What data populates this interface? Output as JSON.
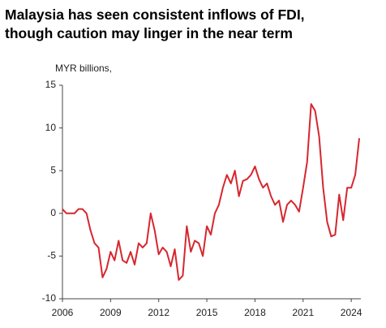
{
  "chart_data": {
    "type": "line",
    "title": [
      "Malaysia has seen consistent inflows of FDI,",
      "though caution may linger in the near term"
    ],
    "y_label": "MYR billions,",
    "x": [
      2006.0,
      2006.25,
      2006.5,
      2006.75,
      2007.0,
      2007.25,
      2007.5,
      2007.75,
      2008.0,
      2008.25,
      2008.5,
      2008.75,
      2009.0,
      2009.25,
      2009.5,
      2009.75,
      2010.0,
      2010.25,
      2010.5,
      2010.75,
      2011.0,
      2011.25,
      2011.5,
      2011.75,
      2012.0,
      2012.25,
      2012.5,
      2012.75,
      2013.0,
      2013.25,
      2013.5,
      2013.75,
      2014.0,
      2014.25,
      2014.5,
      2014.75,
      2015.0,
      2015.25,
      2015.5,
      2015.75,
      2016.0,
      2016.25,
      2016.5,
      2016.75,
      2017.0,
      2017.25,
      2017.5,
      2017.75,
      2018.0,
      2018.25,
      2018.5,
      2018.75,
      2019.0,
      2019.25,
      2019.5,
      2019.75,
      2020.0,
      2020.25,
      2020.5,
      2020.75,
      2021.0,
      2021.25,
      2021.5,
      2021.75,
      2022.0,
      2022.25,
      2022.5,
      2022.75,
      2023.0,
      2023.25,
      2023.5,
      2023.75,
      2024.0,
      2024.25,
      2024.5
    ],
    "series": [
      {
        "name": "FDI",
        "color": "#d7262e",
        "values": [
          0.5,
          0,
          0,
          0,
          0.5,
          0.5,
          0,
          -2,
          -3.5,
          -4,
          -7.5,
          -6.5,
          -4.5,
          -5.5,
          -3.2,
          -5.5,
          -5.8,
          -4.5,
          -6,
          -3.5,
          -4,
          -3.5,
          0,
          -2,
          -4.8,
          -4,
          -4.5,
          -6.2,
          -4.2,
          -7.8,
          -7.3,
          -1.5,
          -4.5,
          -3.2,
          -3.5,
          -5,
          -1.5,
          -2.5,
          0,
          1,
          3,
          4.5,
          3.5,
          5,
          2,
          3.8,
          4,
          4.5,
          5.5,
          4,
          3,
          3.5,
          2,
          1,
          1.5,
          -1,
          1,
          1.5,
          1,
          0.2,
          3,
          6,
          12.8,
          12,
          9,
          3,
          -1,
          -2.7,
          -2.5,
          2.2,
          -0.8,
          3,
          3,
          4.5,
          8.8
        ]
      }
    ],
    "xlim": [
      2006,
      2024.6
    ],
    "xticks": [
      2006,
      2009,
      2012,
      2015,
      2018,
      2021,
      2024
    ],
    "ylim": [
      -10,
      15
    ],
    "yticks": [
      -10,
      -5,
      0,
      5,
      10,
      15
    ]
  }
}
